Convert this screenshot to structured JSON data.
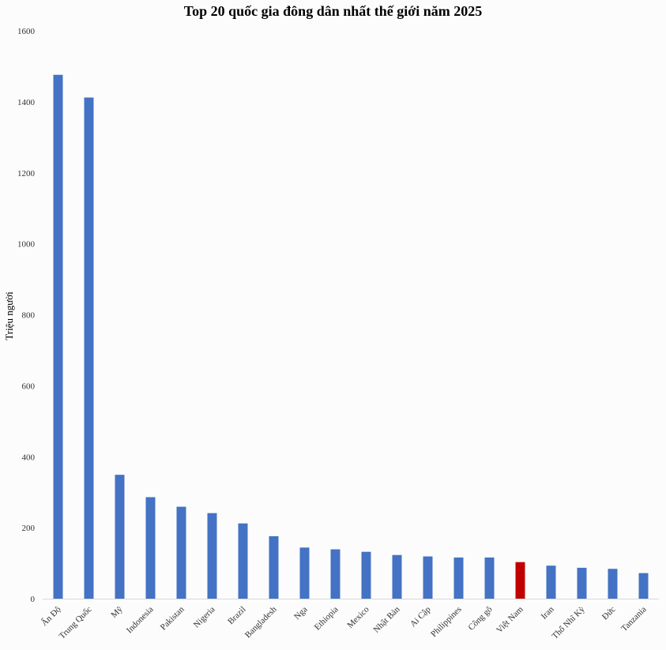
{
  "chart_data": {
    "type": "bar",
    "title": "Top 20 quốc gia đông dân nhất thế giới năm 2025",
    "xlabel": "",
    "ylabel": "Triệu người",
    "ylim": [
      0,
      1600
    ],
    "yticks": [
      0,
      200,
      400,
      600,
      800,
      1000,
      1200,
      1400,
      1600
    ],
    "categories": [
      "Ấn Độ",
      "Trung Quốc",
      "Mỹ",
      "Indonesia",
      "Pakistan",
      "Nigeria",
      "Brazil",
      "Bangladesh",
      "Nga",
      "Ethiopia",
      "Mexico",
      "Nhật Bản",
      "Ai Cập",
      "Philippines",
      "Công gô",
      "Việt Nam",
      "Iran",
      "Thổ Nhĩ Kỳ",
      "Đức",
      "Tanzania"
    ],
    "values": [
      1476,
      1412,
      349,
      286,
      259,
      241,
      212,
      176,
      144,
      139,
      132,
      123,
      119,
      116,
      116,
      103,
      93,
      87,
      84,
      72
    ],
    "bar_color": "#4472c4",
    "highlight": {
      "category": "Việt Nam",
      "color": "#c00000"
    },
    "grid": false,
    "legend": "none"
  }
}
